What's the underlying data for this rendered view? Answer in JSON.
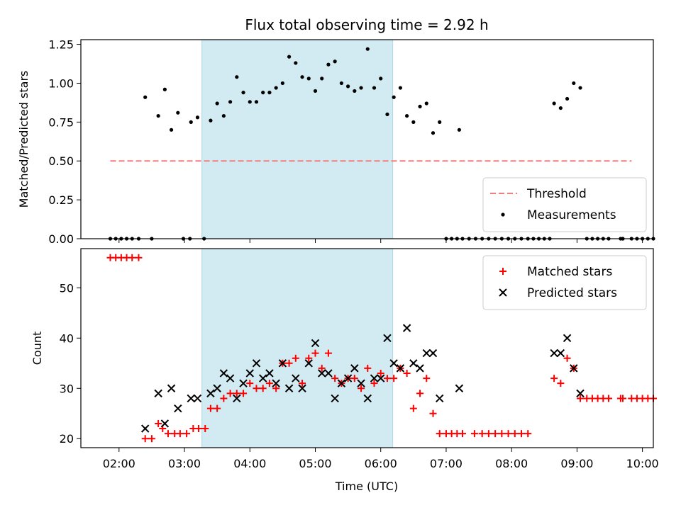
{
  "chart_data": {
    "type": "scatter",
    "title": "Flux total observing time = 2.92 h",
    "xlabel": "Time (UTC)",
    "x_ticks": [
      "02:00",
      "03:00",
      "04:00",
      "05:00",
      "06:00",
      "07:00",
      "08:00",
      "09:00",
      "10:00"
    ],
    "x_range": [
      "01:25",
      "10:10"
    ],
    "highlight_band": {
      "start": "03:16",
      "end": "06:11",
      "color": "#add8e6"
    },
    "panels": [
      {
        "ylabel": "Matched/Predicted stars",
        "ylim": [
          0,
          1.28
        ],
        "y_ticks": [
          "0.00",
          "0.25",
          "0.50",
          "0.75",
          "1.00",
          "1.25"
        ],
        "legend_position": "lower-right",
        "threshold": {
          "name": "Threshold",
          "value": 0.5,
          "x_start": "01:52",
          "x_end": "09:50",
          "color": "#f08080"
        },
        "series": [
          {
            "name": "Measurements",
            "marker": "dot",
            "color": "#000000",
            "points": [
              [
                "01:52",
                0
              ],
              [
                "01:57",
                0
              ],
              [
                "02:02",
                0
              ],
              [
                "02:07",
                0
              ],
              [
                "02:12",
                0
              ],
              [
                "02:18",
                0
              ],
              [
                "02:24",
                0.91
              ],
              [
                "02:30",
                0
              ],
              [
                "02:36",
                0.79
              ],
              [
                "02:42",
                0.96
              ],
              [
                "02:48",
                0.7
              ],
              [
                "02:54",
                0.81
              ],
              [
                "02:59",
                0
              ],
              [
                "03:05",
                0
              ],
              [
                "03:06",
                0.75
              ],
              [
                "03:12",
                0.78
              ],
              [
                "03:18",
                0
              ],
              [
                "03:24",
                0.76
              ],
              [
                "03:30",
                0.87
              ],
              [
                "03:36",
                0.79
              ],
              [
                "03:42",
                0.88
              ],
              [
                "03:48",
                1.04
              ],
              [
                "03:54",
                0.94
              ],
              [
                "04:00",
                0.88
              ],
              [
                "04:06",
                0.88
              ],
              [
                "04:12",
                0.94
              ],
              [
                "04:18",
                0.94
              ],
              [
                "04:24",
                0.97
              ],
              [
                "04:30",
                1.0
              ],
              [
                "04:36",
                1.17
              ],
              [
                "04:42",
                1.13
              ],
              [
                "04:48",
                1.04
              ],
              [
                "04:54",
                1.03
              ],
              [
                "05:00",
                0.95
              ],
              [
                "05:06",
                1.03
              ],
              [
                "05:12",
                1.12
              ],
              [
                "05:18",
                1.14
              ],
              [
                "05:24",
                1.0
              ],
              [
                "05:30",
                0.98
              ],
              [
                "05:36",
                0.95
              ],
              [
                "05:42",
                0.97
              ],
              [
                "05:48",
                1.22
              ],
              [
                "05:54",
                0.97
              ],
              [
                "06:00",
                1.03
              ],
              [
                "06:06",
                0.8
              ],
              [
                "06:12",
                0.91
              ],
              [
                "06:18",
                0.97
              ],
              [
                "06:24",
                0.79
              ],
              [
                "06:30",
                0.75
              ],
              [
                "06:36",
                0.85
              ],
              [
                "06:42",
                0.87
              ],
              [
                "06:48",
                0.68
              ],
              [
                "06:54",
                0.75
              ],
              [
                "07:00",
                0
              ],
              [
                "07:05",
                0
              ],
              [
                "07:10",
                0
              ],
              [
                "07:15",
                0
              ],
              [
                "07:21",
                0
              ],
              [
                "07:27",
                0
              ],
              [
                "07:33",
                0
              ],
              [
                "07:39",
                0
              ],
              [
                "07:12",
                0.7
              ],
              [
                "07:45",
                0
              ],
              [
                "07:51",
                0
              ],
              [
                "07:57",
                0
              ],
              [
                "08:03",
                0
              ],
              [
                "08:09",
                0
              ],
              [
                "08:15",
                0
              ],
              [
                "08:20",
                0
              ],
              [
                "08:25",
                0
              ],
              [
                "08:30",
                0
              ],
              [
                "08:35",
                0
              ],
              [
                "08:39",
                0.87
              ],
              [
                "08:45",
                0.84
              ],
              [
                "08:51",
                0.9
              ],
              [
                "08:57",
                1.0
              ],
              [
                "09:03",
                0.97
              ],
              [
                "09:09",
                0
              ],
              [
                "09:14",
                0
              ],
              [
                "09:19",
                0
              ],
              [
                "09:24",
                0
              ],
              [
                "09:29",
                0
              ],
              [
                "09:40",
                0
              ],
              [
                "09:42",
                0
              ],
              [
                "09:50",
                0
              ],
              [
                "09:55",
                0
              ],
              [
                "10:00",
                0
              ],
              [
                "10:05",
                0
              ],
              [
                "10:10",
                0
              ]
            ]
          }
        ]
      },
      {
        "ylabel": "Count",
        "ylim": [
          18.2,
          57.8
        ],
        "y_ticks": [
          "20",
          "30",
          "40",
          "50"
        ],
        "legend_position": "upper-right",
        "series": [
          {
            "name": "Matched stars",
            "marker": "plus",
            "color": "#ff0000",
            "points": [
              [
                "01:52",
                56
              ],
              [
                "01:57",
                56
              ],
              [
                "02:02",
                56
              ],
              [
                "02:07",
                56
              ],
              [
                "02:12",
                56
              ],
              [
                "02:18",
                56
              ],
              [
                "02:24",
                20
              ],
              [
                "02:30",
                20
              ],
              [
                "02:36",
                23
              ],
              [
                "02:40",
                22
              ],
              [
                "02:45",
                21
              ],
              [
                "02:51",
                21
              ],
              [
                "02:56",
                21
              ],
              [
                "03:02",
                21
              ],
              [
                "03:08",
                22
              ],
              [
                "03:13",
                22
              ],
              [
                "03:19",
                22
              ],
              [
                "03:24",
                26
              ],
              [
                "03:30",
                26
              ],
              [
                "03:36",
                28
              ],
              [
                "03:42",
                29
              ],
              [
                "03:48",
                29
              ],
              [
                "03:54",
                29
              ],
              [
                "04:00",
                31
              ],
              [
                "04:06",
                30
              ],
              [
                "04:12",
                30
              ],
              [
                "04:18",
                31
              ],
              [
                "04:24",
                30
              ],
              [
                "04:30",
                35
              ],
              [
                "04:36",
                35
              ],
              [
                "04:42",
                36
              ],
              [
                "04:48",
                31
              ],
              [
                "04:54",
                36
              ],
              [
                "05:00",
                37
              ],
              [
                "05:06",
                34
              ],
              [
                "05:12",
                37
              ],
              [
                "05:18",
                32
              ],
              [
                "05:24",
                31
              ],
              [
                "05:30",
                32
              ],
              [
                "05:36",
                32
              ],
              [
                "05:42",
                30
              ],
              [
                "05:48",
                34
              ],
              [
                "05:54",
                31
              ],
              [
                "06:00",
                33
              ],
              [
                "06:06",
                32
              ],
              [
                "06:12",
                32
              ],
              [
                "06:18",
                34
              ],
              [
                "06:24",
                33
              ],
              [
                "06:30",
                26
              ],
              [
                "06:36",
                29
              ],
              [
                "06:42",
                32
              ],
              [
                "06:48",
                25
              ],
              [
                "06:54",
                21
              ],
              [
                "07:00",
                21
              ],
              [
                "07:05",
                21
              ],
              [
                "07:10",
                21
              ],
              [
                "07:15",
                21
              ],
              [
                "07:26",
                21
              ],
              [
                "07:33",
                21
              ],
              [
                "07:39",
                21
              ],
              [
                "07:45",
                21
              ],
              [
                "07:51",
                21
              ],
              [
                "07:57",
                21
              ],
              [
                "08:03",
                21
              ],
              [
                "08:09",
                21
              ],
              [
                "08:15",
                21
              ],
              [
                "08:39",
                32
              ],
              [
                "08:45",
                31
              ],
              [
                "08:51",
                36
              ],
              [
                "08:57",
                34
              ],
              [
                "09:03",
                28
              ],
              [
                "09:09",
                28
              ],
              [
                "09:14",
                28
              ],
              [
                "09:19",
                28
              ],
              [
                "09:24",
                28
              ],
              [
                "09:29",
                28
              ],
              [
                "09:40",
                28
              ],
              [
                "09:42",
                28
              ],
              [
                "09:50",
                28
              ],
              [
                "09:55",
                28
              ],
              [
                "10:00",
                28
              ],
              [
                "10:05",
                28
              ],
              [
                "10:10",
                28
              ]
            ]
          },
          {
            "name": "Predicted stars",
            "marker": "x",
            "color": "#000000",
            "points": [
              [
                "02:24",
                22
              ],
              [
                "02:36",
                29
              ],
              [
                "02:42",
                23
              ],
              [
                "02:48",
                30
              ],
              [
                "02:54",
                26
              ],
              [
                "03:06",
                28
              ],
              [
                "03:12",
                28
              ],
              [
                "03:24",
                29
              ],
              [
                "03:30",
                30
              ],
              [
                "03:36",
                33
              ],
              [
                "03:42",
                32
              ],
              [
                "03:48",
                28
              ],
              [
                "03:54",
                31
              ],
              [
                "04:00",
                33
              ],
              [
                "04:06",
                35
              ],
              [
                "04:12",
                32
              ],
              [
                "04:18",
                33
              ],
              [
                "04:24",
                31
              ],
              [
                "04:30",
                35
              ],
              [
                "04:36",
                30
              ],
              [
                "04:42",
                32
              ],
              [
                "04:48",
                30
              ],
              [
                "04:54",
                35
              ],
              [
                "05:00",
                39
              ],
              [
                "05:06",
                33
              ],
              [
                "05:12",
                33
              ],
              [
                "05:18",
                28
              ],
              [
                "05:24",
                31
              ],
              [
                "05:30",
                32
              ],
              [
                "05:36",
                34
              ],
              [
                "05:42",
                31
              ],
              [
                "05:48",
                28
              ],
              [
                "05:54",
                32
              ],
              [
                "06:00",
                32
              ],
              [
                "06:06",
                40
              ],
              [
                "06:12",
                35
              ],
              [
                "06:18",
                34
              ],
              [
                "06:24",
                42
              ],
              [
                "06:30",
                35
              ],
              [
                "06:36",
                34
              ],
              [
                "06:42",
                37
              ],
              [
                "06:48",
                37
              ],
              [
                "06:54",
                28
              ],
              [
                "07:12",
                30
              ],
              [
                "08:39",
                37
              ],
              [
                "08:45",
                37
              ],
              [
                "08:51",
                40
              ],
              [
                "08:57",
                34
              ],
              [
                "09:03",
                29
              ]
            ]
          }
        ]
      }
    ]
  }
}
